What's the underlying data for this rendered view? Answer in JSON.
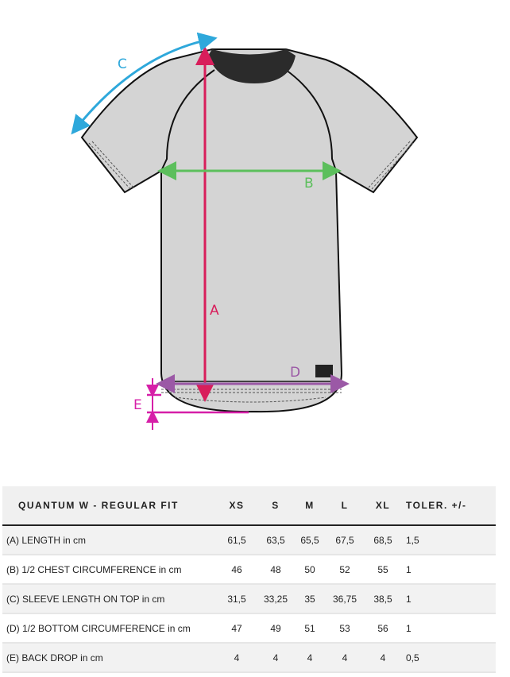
{
  "diagram": {
    "labels": {
      "a": "A",
      "b": "B",
      "c": "C",
      "d": "D",
      "e": "E"
    },
    "colors": {
      "a": "#d81e5b",
      "b": "#5cbf5c",
      "c": "#2ea8db",
      "d": "#9b59a6",
      "e": "#d61fa8",
      "shirt": "#d4d4d4",
      "collar": "#2b2b2b"
    }
  },
  "table": {
    "headers": [
      "QUANTUM W - REGULAR FIT",
      "XS",
      "S",
      "M",
      "L",
      "XL",
      "TOLER. +/-"
    ],
    "rows": [
      [
        "(A) LENGTH in cm",
        "61,5",
        "63,5",
        "65,5",
        "67,5",
        "68,5",
        "1,5"
      ],
      [
        "(B) 1/2 CHEST CIRCUMFERENCE in cm",
        "46",
        "48",
        "50",
        "52",
        "55",
        "1"
      ],
      [
        "(C) SLEEVE LENGTH ON TOP in cm",
        "31,5",
        "33,25",
        "35",
        "36,75",
        "38,5",
        "1"
      ],
      [
        "(D) 1/2 BOTTOM CIRCUMFERENCE in cm",
        "47",
        "49",
        "51",
        "53",
        "56",
        "1"
      ],
      [
        "(E) BACK DROP in cm",
        "4",
        "4",
        "4",
        "4",
        "4",
        "0,5"
      ]
    ]
  }
}
